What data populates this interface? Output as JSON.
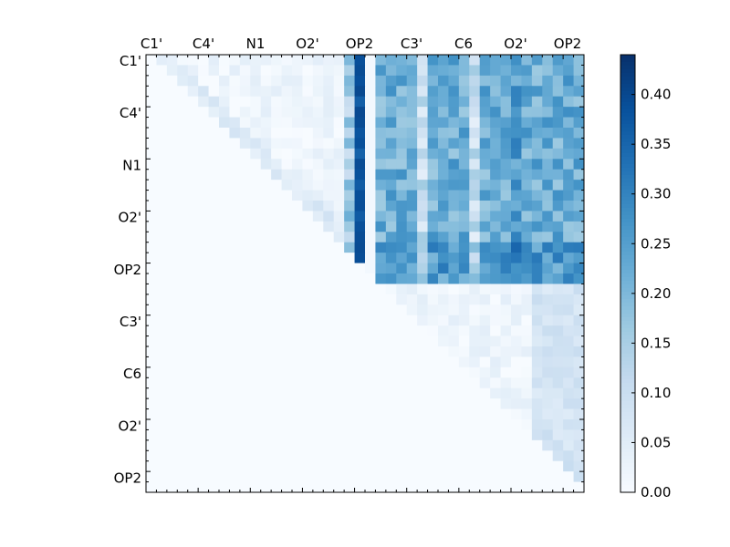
{
  "chart_data": {
    "type": "heatmap",
    "title": "",
    "xlabel": "",
    "ylabel": "",
    "x_tick_labels": [
      "C1'",
      "C4'",
      "N1",
      "O2'",
      "OP2",
      "C3'",
      "C6",
      "O2'",
      "OP2"
    ],
    "y_tick_labels": [
      "C1'",
      "C4'",
      "N1",
      "O2'",
      "OP2",
      "C3'",
      "C6",
      "O2'",
      "OP2"
    ],
    "grid_size": 42,
    "upper_triangular": true,
    "colormap": "Blues",
    "colorbar": {
      "range": [
        0,
        0.44
      ],
      "tick_labels": [
        "0.00",
        "0.05",
        "0.10",
        "0.15",
        "0.20",
        "0.25",
        "0.30",
        "0.35",
        "0.40"
      ],
      "tick_values": [
        0,
        0.05,
        0.1,
        0.15,
        0.2,
        0.25,
        0.3,
        0.35,
        0.4
      ]
    },
    "block_values": {
      "note_x_blocks_row_blocks": "approximate mean value per region",
      "diag_block_rows_0_20_cols_0_20": 0.02,
      "strong_column_index": 20,
      "strong_column_value_rows_0_20": 0.4,
      "block_rows_0_21_cols_22_41": 0.22,
      "band_rows_18_21_cols_22_41": 0.26,
      "block_rows_22_41_cols_22_41_near_right_edge": 0.08,
      "lower_triangle": 0.0
    },
    "colors": {
      "cmap_low": "#f7fbff",
      "cmap_mid": "#6baed6",
      "cmap_high": "#08306b"
    }
  }
}
